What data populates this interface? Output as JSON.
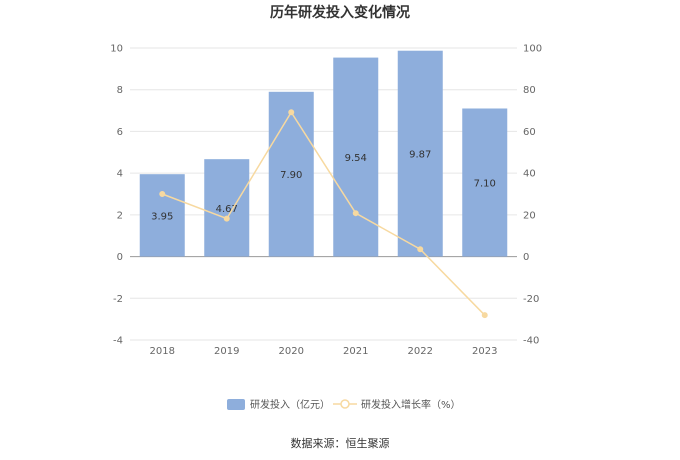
{
  "chart_data": {
    "type": "bar",
    "title": "历年研发投入变化情况",
    "categories": [
      "2018",
      "2019",
      "2020",
      "2021",
      "2022",
      "2023"
    ],
    "series": [
      {
        "name": "研发投入（亿元）",
        "type": "bar",
        "axis": "left",
        "values": [
          3.95,
          4.67,
          7.9,
          9.54,
          9.87,
          7.1
        ],
        "labels": [
          "3.95",
          "4.67",
          "7.90",
          "9.54",
          "9.87",
          "7.10"
        ]
      },
      {
        "name": "研发投入增长率（%）",
        "type": "line",
        "axis": "right",
        "values": [
          30.0,
          18.2,
          69.2,
          20.8,
          3.5,
          -28.1
        ]
      }
    ],
    "y_left": {
      "min": -4,
      "max": 10,
      "ticks": [
        "-4",
        "-2",
        "0",
        "2",
        "4",
        "6",
        "8",
        "10"
      ]
    },
    "y_right": {
      "min": -40,
      "max": 100,
      "ticks": [
        "-40",
        "-20",
        "0",
        "20",
        "40",
        "60",
        "80",
        "100"
      ]
    },
    "grid": true,
    "legend_position": "bottom",
    "colors": {
      "bar": "#8eaedc",
      "line": "#f7d9a0",
      "grid": "#e6e6e6",
      "axis": "#999999"
    }
  },
  "footer": {
    "source": "数据来源：恒生聚源"
  }
}
